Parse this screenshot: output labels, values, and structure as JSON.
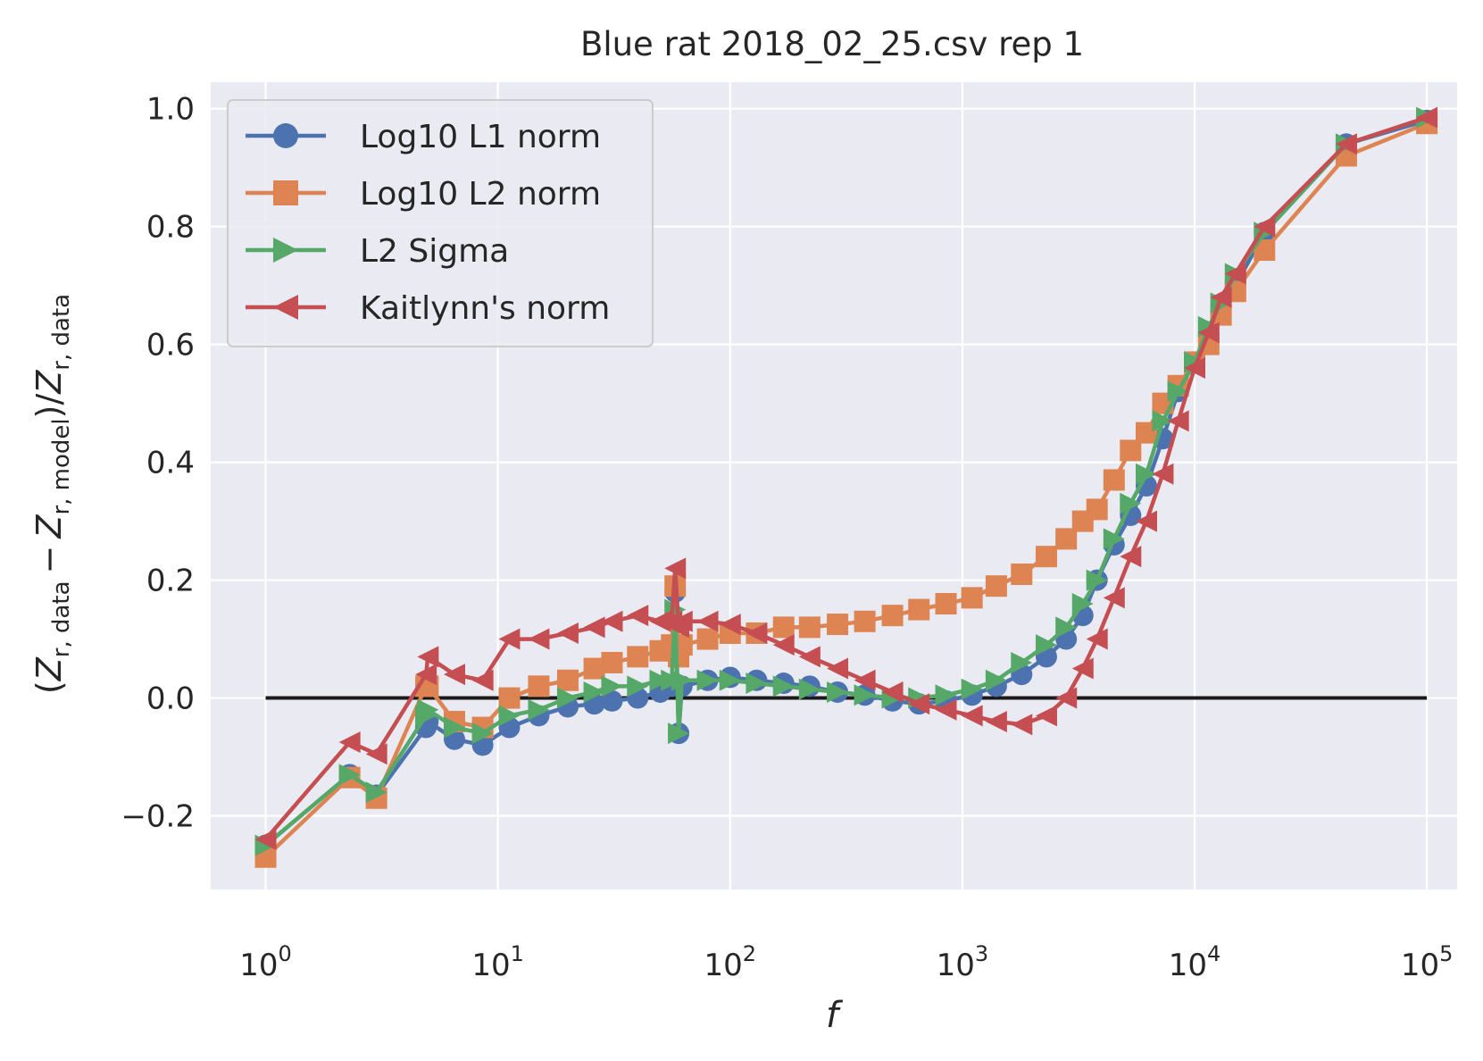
{
  "chart_data": {
    "type": "line",
    "title": "Blue rat 2018_02_25.csv rep 1",
    "xlabel": "f",
    "ylabel": {
      "open": "(",
      "z1": "Z",
      "sub1": "r, data",
      "minus": "−",
      "z2": "Z",
      "sub2": "r, model",
      "close": ")/",
      "z3": "Z",
      "sub3": "r, data"
    },
    "x_scale": "log",
    "xlim": [
      0.58,
      135000
    ],
    "ylim": [
      -0.325,
      1.045
    ],
    "xticks": [
      {
        "value": 1,
        "base": "10",
        "exp": "0"
      },
      {
        "value": 10,
        "base": "10",
        "exp": "1"
      },
      {
        "value": 100,
        "base": "10",
        "exp": "2"
      },
      {
        "value": 1000,
        "base": "10",
        "exp": "3"
      },
      {
        "value": 10000,
        "base": "10",
        "exp": "4"
      },
      {
        "value": 100000,
        "base": "10",
        "exp": "5"
      }
    ],
    "yticks": [
      {
        "value": -0.2,
        "label": "−0.2"
      },
      {
        "value": 0.0,
        "label": "0.0"
      },
      {
        "value": 0.2,
        "label": "0.2"
      },
      {
        "value": 0.4,
        "label": "0.4"
      },
      {
        "value": 0.6,
        "label": "0.6"
      },
      {
        "value": 0.8,
        "label": "0.8"
      },
      {
        "value": 1.0,
        "label": "1.0"
      }
    ],
    "grid": true,
    "legend_position": "upper-left",
    "reference_line": {
      "y": 0.0,
      "x_from": 1,
      "x_to": 100000,
      "color": "#1a1a1a"
    },
    "series": [
      {
        "name": "Log10 L1 norm",
        "color": "#4c72b0",
        "marker": "circle",
        "points": [
          [
            1,
            -0.25
          ],
          [
            2.3,
            -0.13
          ],
          [
            3,
            -0.165
          ],
          [
            4.9,
            -0.05
          ],
          [
            5,
            -0.04
          ],
          [
            6.5,
            -0.07
          ],
          [
            8.6,
            -0.08
          ],
          [
            11.2,
            -0.05
          ],
          [
            15,
            -0.03
          ],
          [
            20,
            -0.015
          ],
          [
            26,
            -0.01
          ],
          [
            31,
            -0.005
          ],
          [
            40,
            0.0
          ],
          [
            50,
            0.01
          ],
          [
            56,
            0.02
          ],
          [
            58,
            0.18
          ],
          [
            60,
            -0.06
          ],
          [
            62,
            0.02
          ],
          [
            80,
            0.03
          ],
          [
            100,
            0.035
          ],
          [
            130,
            0.03
          ],
          [
            170,
            0.025
          ],
          [
            220,
            0.02
          ],
          [
            290,
            0.01
          ],
          [
            380,
            0.005
          ],
          [
            500,
            -0.005
          ],
          [
            650,
            -0.01
          ],
          [
            850,
            -0.005
          ],
          [
            1100,
            0.005
          ],
          [
            1400,
            0.02
          ],
          [
            1800,
            0.04
          ],
          [
            2300,
            0.07
          ],
          [
            2800,
            0.1
          ],
          [
            3300,
            0.14
          ],
          [
            3800,
            0.2
          ],
          [
            4500,
            0.26
          ],
          [
            5300,
            0.31
          ],
          [
            6200,
            0.36
          ],
          [
            7300,
            0.44
          ],
          [
            8500,
            0.52
          ],
          [
            10000,
            0.57
          ],
          [
            11500,
            0.62
          ],
          [
            13000,
            0.65
          ],
          [
            15000,
            0.7
          ],
          [
            20000,
            0.79
          ],
          [
            45000,
            0.94
          ],
          [
            100000,
            0.98
          ]
        ]
      },
      {
        "name": "Log10 L2 norm",
        "color": "#dd8452",
        "marker": "square",
        "points": [
          [
            1,
            -0.27
          ],
          [
            2.3,
            -0.135
          ],
          [
            3,
            -0.17
          ],
          [
            4.9,
            0.02
          ],
          [
            5,
            0.02
          ],
          [
            6.5,
            -0.04
          ],
          [
            8.6,
            -0.05
          ],
          [
            11.2,
            0.0
          ],
          [
            15,
            0.02
          ],
          [
            20,
            0.03
          ],
          [
            26,
            0.05
          ],
          [
            31,
            0.06
          ],
          [
            40,
            0.07
          ],
          [
            50,
            0.08
          ],
          [
            56,
            0.09
          ],
          [
            58,
            0.19
          ],
          [
            60,
            0.07
          ],
          [
            62,
            0.09
          ],
          [
            80,
            0.1
          ],
          [
            100,
            0.11
          ],
          [
            130,
            0.11
          ],
          [
            170,
            0.12
          ],
          [
            220,
            0.12
          ],
          [
            290,
            0.125
          ],
          [
            380,
            0.13
          ],
          [
            500,
            0.14
          ],
          [
            650,
            0.15
          ],
          [
            850,
            0.16
          ],
          [
            1100,
            0.17
          ],
          [
            1400,
            0.19
          ],
          [
            1800,
            0.21
          ],
          [
            2300,
            0.24
          ],
          [
            2800,
            0.27
          ],
          [
            3300,
            0.3
          ],
          [
            3800,
            0.32
          ],
          [
            4500,
            0.37
          ],
          [
            5300,
            0.42
          ],
          [
            6200,
            0.45
          ],
          [
            7300,
            0.5
          ],
          [
            8500,
            0.53
          ],
          [
            10000,
            0.57
          ],
          [
            11500,
            0.6
          ],
          [
            13000,
            0.65
          ],
          [
            15000,
            0.69
          ],
          [
            20000,
            0.76
          ],
          [
            45000,
            0.92
          ],
          [
            100000,
            0.975
          ]
        ]
      },
      {
        "name": "L2 Sigma",
        "color": "#55a868",
        "marker": "triangle-right",
        "points": [
          [
            1,
            -0.25
          ],
          [
            2.3,
            -0.13
          ],
          [
            3,
            -0.16
          ],
          [
            4.9,
            -0.03
          ],
          [
            5,
            -0.02
          ],
          [
            6.5,
            -0.05
          ],
          [
            8.6,
            -0.06
          ],
          [
            11.2,
            -0.03
          ],
          [
            15,
            -0.02
          ],
          [
            20,
            0.0
          ],
          [
            26,
            0.01
          ],
          [
            31,
            0.02
          ],
          [
            40,
            0.02
          ],
          [
            50,
            0.03
          ],
          [
            56,
            0.03
          ],
          [
            58,
            0.15
          ],
          [
            60,
            -0.06
          ],
          [
            62,
            0.03
          ],
          [
            80,
            0.03
          ],
          [
            100,
            0.03
          ],
          [
            130,
            0.025
          ],
          [
            170,
            0.02
          ],
          [
            220,
            0.015
          ],
          [
            290,
            0.01
          ],
          [
            380,
            0.005
          ],
          [
            500,
            0.0
          ],
          [
            650,
            0.0
          ],
          [
            850,
            0.005
          ],
          [
            1100,
            0.015
          ],
          [
            1400,
            0.03
          ],
          [
            1800,
            0.06
          ],
          [
            2300,
            0.09
          ],
          [
            2800,
            0.12
          ],
          [
            3300,
            0.16
          ],
          [
            3800,
            0.2
          ],
          [
            4500,
            0.27
          ],
          [
            5300,
            0.33
          ],
          [
            6200,
            0.38
          ],
          [
            7300,
            0.47
          ],
          [
            8500,
            0.52
          ],
          [
            10000,
            0.57
          ],
          [
            11500,
            0.63
          ],
          [
            13000,
            0.67
          ],
          [
            15000,
            0.72
          ],
          [
            20000,
            0.79
          ],
          [
            45000,
            0.94
          ],
          [
            100000,
            0.985
          ]
        ]
      },
      {
        "name": "Kaitlynn's norm",
        "color": "#c44e52",
        "marker": "triangle-left",
        "points": [
          [
            1,
            -0.24
          ],
          [
            2.3,
            -0.075
          ],
          [
            3,
            -0.095
          ],
          [
            4.9,
            0.04
          ],
          [
            5,
            0.07
          ],
          [
            6.5,
            0.04
          ],
          [
            8.6,
            0.03
          ],
          [
            11.2,
            0.1
          ],
          [
            15,
            0.1
          ],
          [
            20,
            0.11
          ],
          [
            26,
            0.12
          ],
          [
            31,
            0.13
          ],
          [
            40,
            0.14
          ],
          [
            50,
            0.13
          ],
          [
            56,
            0.13
          ],
          [
            58,
            0.22
          ],
          [
            60,
            0.12
          ],
          [
            62,
            0.13
          ],
          [
            80,
            0.13
          ],
          [
            100,
            0.125
          ],
          [
            130,
            0.11
          ],
          [
            170,
            0.09
          ],
          [
            220,
            0.07
          ],
          [
            290,
            0.05
          ],
          [
            380,
            0.03
          ],
          [
            500,
            0.01
          ],
          [
            650,
            -0.01
          ],
          [
            850,
            -0.02
          ],
          [
            1100,
            -0.03
          ],
          [
            1400,
            -0.04
          ],
          [
            1800,
            -0.045
          ],
          [
            2300,
            -0.03
          ],
          [
            2800,
            0.0
          ],
          [
            3300,
            0.05
          ],
          [
            3800,
            0.1
          ],
          [
            4500,
            0.17
          ],
          [
            5300,
            0.24
          ],
          [
            6200,
            0.3
          ],
          [
            7300,
            0.38
          ],
          [
            8500,
            0.47
          ],
          [
            10000,
            0.56
          ],
          [
            11500,
            0.62
          ],
          [
            13000,
            0.68
          ],
          [
            15000,
            0.72
          ],
          [
            20000,
            0.8
          ],
          [
            45000,
            0.94
          ],
          [
            100000,
            0.985
          ]
        ]
      }
    ]
  }
}
